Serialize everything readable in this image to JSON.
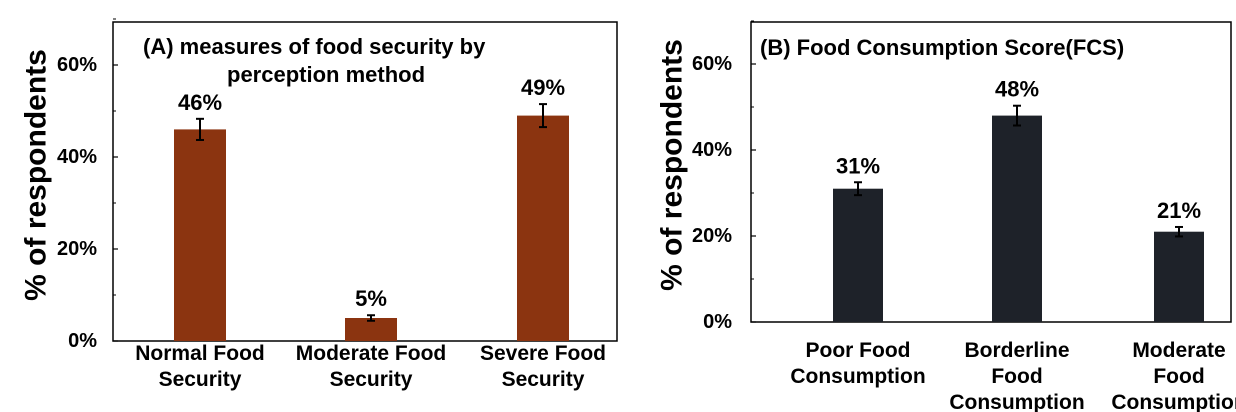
{
  "chart_data": [
    {
      "type": "bar",
      "title": "(A) measures of food security by perception method",
      "title_lines": [
        "(A) measures of food security by",
        "perception method"
      ],
      "categories": [
        "Normal Food Security",
        "Moderate Food Security",
        "Severe Food Security"
      ],
      "category_lines": [
        [
          "Normal Food",
          "Security"
        ],
        [
          "Moderate Food",
          "Security"
        ],
        [
          "Severe Food",
          "Security"
        ]
      ],
      "values": [
        46,
        5,
        49
      ],
      "errors": [
        2.3,
        0.6,
        2.5
      ],
      "data_labels": [
        "46%",
        "5%",
        "49%"
      ],
      "ylabel": "% of respondents",
      "xlabel": "",
      "ylim": [
        0,
        70
      ],
      "yticks": [
        0,
        20,
        40,
        60
      ],
      "ytick_labels": [
        "0%",
        "20%",
        "40%",
        "60%"
      ],
      "bar_color": "#8B3410",
      "grid": false
    },
    {
      "type": "bar",
      "title": "(B) Food Consumption Score(FCS)",
      "title_lines": [
        "(B) Food Consumption Score(FCS)"
      ],
      "categories": [
        "Poor Food Consumption",
        "Borderline Food Consumption",
        "Moderate Food Consumption"
      ],
      "category_lines": [
        [
          "Poor Food",
          "Consumption"
        ],
        [
          "Borderline",
          "Food",
          "Consumption"
        ],
        [
          "Moderate",
          "Food",
          "Consumption"
        ]
      ],
      "values": [
        31,
        48,
        21
      ],
      "errors": [
        1.5,
        2.3,
        1.1
      ],
      "data_labels": [
        "31%",
        "48%",
        "21%"
      ],
      "ylabel": "% of respondents",
      "xlabel": "",
      "ylim": [
        0,
        70
      ],
      "yticks": [
        0,
        20,
        40,
        60
      ],
      "ytick_labels": [
        "0%",
        "20%",
        "40%",
        "60%"
      ],
      "bar_color": "#1E2229",
      "grid": false
    }
  ]
}
